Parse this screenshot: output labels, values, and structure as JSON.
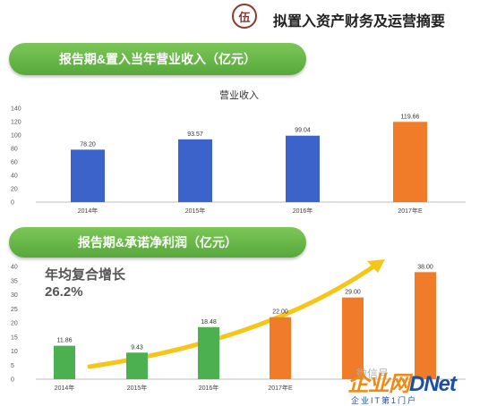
{
  "header": {
    "badge": "伍",
    "title": "拟置入资产财务及运营摘要"
  },
  "banners": {
    "revenue": "报告期&置入当年营业收入（亿元）",
    "profit": "报告期&承诺净利润（亿元）"
  },
  "cagr": {
    "title": "年均复合增长",
    "value": "26.2%"
  },
  "watermark": {
    "cn": "微信号",
    "logo_a": "企业网",
    "logo_b": "D",
    "logo_c": "Net",
    "sub": "企业IT第1门户"
  },
  "colors": {
    "blue": "#3c63c9",
    "orange": "#f07c2a",
    "green_banner": "#6ab84b",
    "arrow": "#f5c518"
  },
  "chart_data": [
    {
      "type": "bar",
      "title": "营业收入",
      "categories": [
        "2014年",
        "2015年",
        "2016年",
        "2017年E"
      ],
      "values": [
        78.2,
        93.57,
        99.04,
        119.66
      ],
      "value_labels": [
        "78.20",
        "93.57",
        "99.04",
        "119.66"
      ],
      "bar_colors": [
        "#3c63c9",
        "#3c63c9",
        "#3c63c9",
        "#f07c2a"
      ],
      "ylim": [
        0,
        140
      ],
      "yticks": [
        "0",
        "20",
        "40",
        "60",
        "80",
        "100",
        "120",
        "140"
      ],
      "grid": false
    },
    {
      "type": "bar",
      "categories": [
        "2014年",
        "2015年",
        "2016年",
        "2017年E",
        "",
        ""
      ],
      "values": [
        11.86,
        9.43,
        18.48,
        22.0,
        29.0,
        38.0
      ],
      "value_labels": [
        "11.86",
        "9.43",
        "18.48",
        "22.00",
        "29.00",
        "38.00"
      ],
      "bar_colors": [
        "#4caf50",
        "#4caf50",
        "#4caf50",
        "#f07c2a",
        "#f07c2a",
        "#f07c2a"
      ],
      "ylim": [
        0,
        40
      ],
      "yticks": [
        "0",
        "5",
        "10",
        "15",
        "20",
        "25",
        "30",
        "35",
        "40"
      ],
      "grid": false
    }
  ]
}
